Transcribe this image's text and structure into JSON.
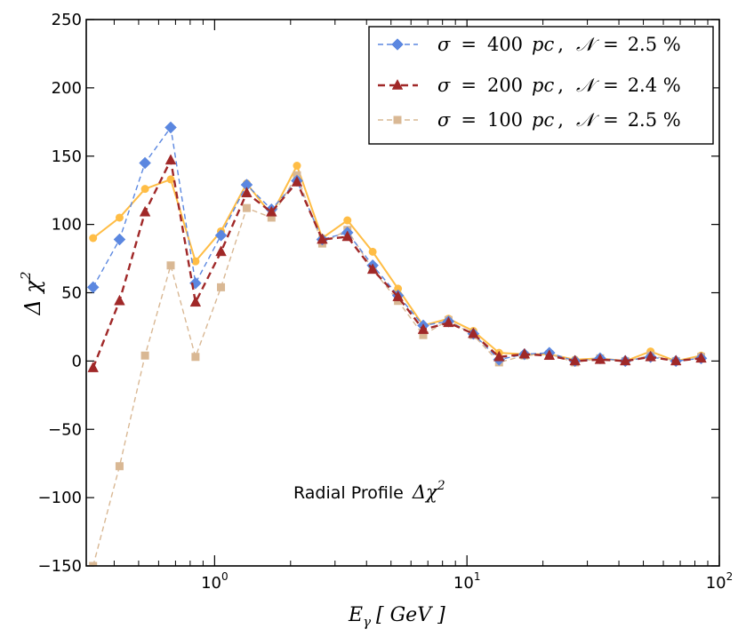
{
  "chart_data": {
    "type": "line",
    "title": "",
    "xlabel_main": "E",
    "xlabel_sub": "γ",
    "xlabel_unit": "[ GeV ]",
    "ylabel_main": "Δ χ",
    "ylabel_sup": "2",
    "xscale": "log",
    "xlim": [
      0.31,
      100
    ],
    "ylim": [
      -150,
      250
    ],
    "yticks": [
      -150,
      -100,
      -50,
      0,
      50,
      100,
      150,
      200,
      250
    ],
    "ytick_labels": [
      "−150",
      "−100",
      "−50",
      "0",
      "50",
      "100",
      "150",
      "200",
      "250"
    ],
    "xticks": [
      1,
      10,
      100
    ],
    "xtick_labels": [
      {
        "base": "10",
        "exp": "0"
      },
      {
        "base": "10",
        "exp": "1"
      },
      {
        "base": "10",
        "exp": "2"
      }
    ],
    "annotation": {
      "text": "Radial Profile",
      "math": "Δχ",
      "sup": "2"
    },
    "legend_position": "top-right",
    "x": [
      0.33,
      0.42,
      0.53,
      0.67,
      0.84,
      1.06,
      1.34,
      1.68,
      2.12,
      2.67,
      3.36,
      4.23,
      5.33,
      6.71,
      8.45,
      10.6,
      13.4,
      16.9,
      21.2,
      26.8,
      33.7,
      42.4,
      53.4,
      67.3,
      84.7
    ],
    "series": [
      {
        "name": "σ = 400 pc ,  𝒩 = 2.5 %",
        "legend_parts": {
          "sigma": "σ",
          "eq": "=",
          "val": "400",
          "unit": "pc",
          "N": "𝒩",
          "pct": "2.5 %"
        },
        "color": "#5b87e0",
        "marker": "diamond",
        "line": "dashed-thin",
        "values": [
          54,
          89,
          145,
          171,
          57,
          92,
          129,
          111,
          132,
          89,
          94,
          70,
          48,
          26,
          29,
          20,
          1,
          5,
          6,
          0,
          2,
          0,
          3,
          0,
          2
        ]
      },
      {
        "name": "σ = 200 pc ,  𝒩 = 2.4 %",
        "legend_parts": {
          "sigma": "σ",
          "eq": "=",
          "val": "200",
          "unit": "pc",
          "N": "𝒩",
          "pct": "2.4 %"
        },
        "color": "#a02828",
        "marker": "triangle",
        "line": "dashed-thick",
        "values": [
          -5,
          44,
          109,
          147,
          43,
          80,
          123,
          109,
          131,
          89,
          91,
          67,
          47,
          23,
          28,
          20,
          3,
          5,
          4,
          0,
          1,
          0,
          3,
          0,
          2
        ]
      },
      {
        "name": "σ = 100 pc ,  𝒩 = 2.5 %",
        "legend_parts": {
          "sigma": "σ",
          "eq": "=",
          "val": "100",
          "unit": "pc",
          "N": "𝒩",
          "pct": "2.5 %"
        },
        "color": "#d9b894",
        "marker": "square",
        "line": "dashed-thin",
        "values": [
          -150,
          -77,
          4,
          70,
          3,
          54,
          112,
          105,
          136,
          86,
          96,
          67,
          44,
          19,
          30,
          19,
          -1,
          4,
          5,
          -1,
          2,
          0,
          4,
          0,
          3
        ]
      },
      {
        "name": "",
        "color": "#ffbd45",
        "marker": "circle",
        "line": "solid",
        "values": [
          90,
          105,
          126,
          133,
          73,
          95,
          130,
          107,
          143,
          90,
          103,
          80,
          53,
          26,
          31,
          22,
          6,
          5,
          5,
          1,
          2,
          0,
          7,
          0,
          4
        ]
      }
    ]
  }
}
